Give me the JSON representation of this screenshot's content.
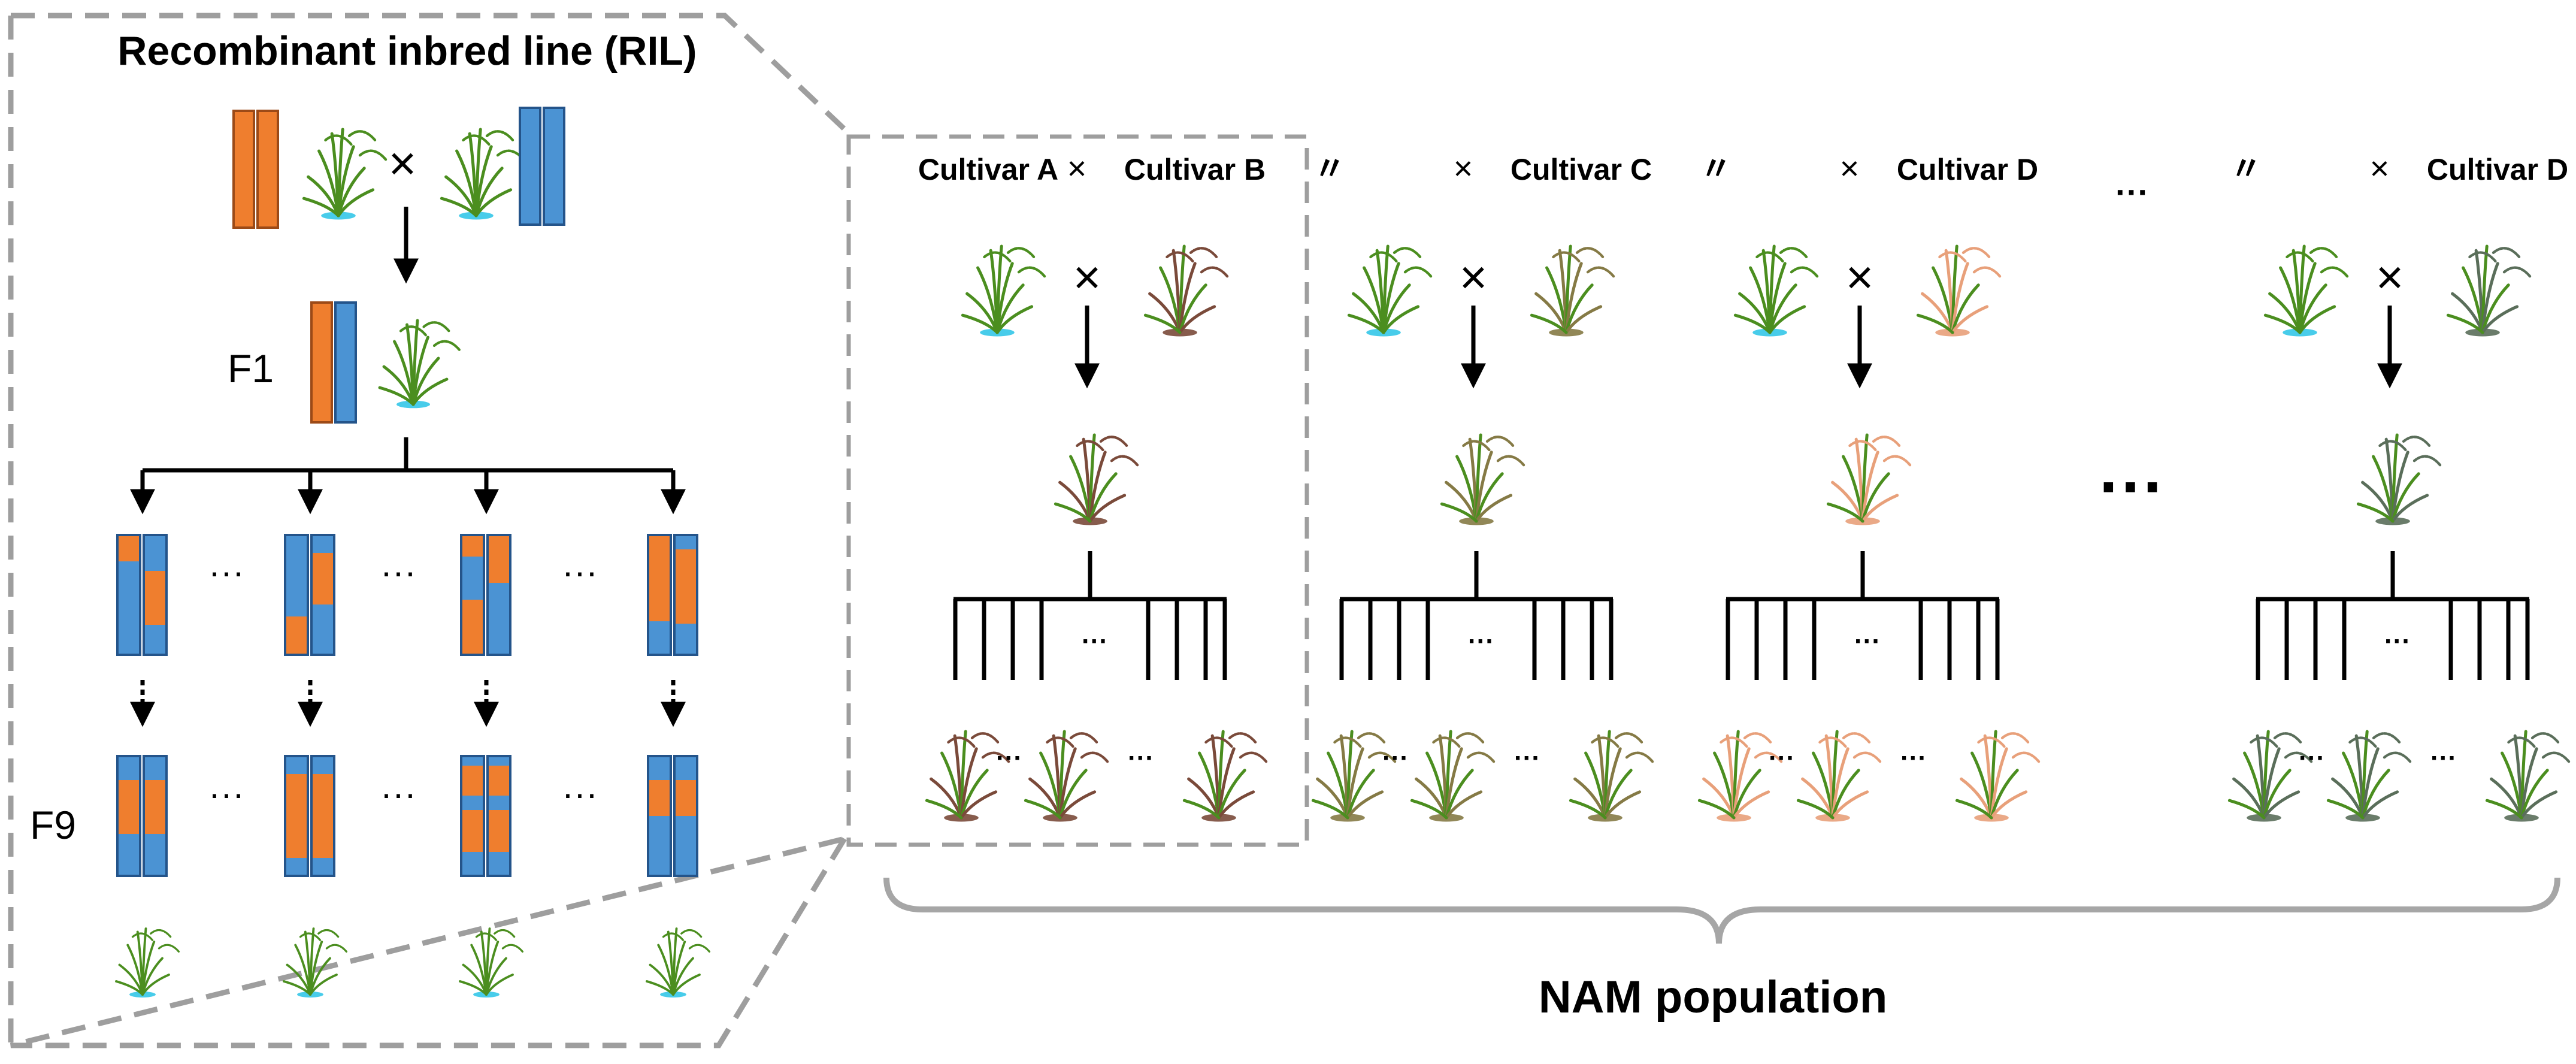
{
  "ril": {
    "title": "Recombinant inbred line (RIL)",
    "cross_symbol": "×",
    "f1_label": "F1",
    "f9_label": "F9",
    "ellipsis": "···",
    "f1_chromosomes": [
      "orange",
      "blue"
    ],
    "columns": [
      {
        "f2_left": [
          {
            "color": "orange",
            "frac": 0.22
          },
          {
            "color": "blue",
            "frac": 0.78
          }
        ],
        "f2_right": [
          {
            "color": "blue",
            "frac": 0.3
          },
          {
            "color": "orange",
            "frac": 0.45
          },
          {
            "color": "blue",
            "frac": 0.25
          }
        ],
        "f9_left": [
          {
            "color": "blue",
            "frac": 0.2
          },
          {
            "color": "orange",
            "frac": 0.45
          },
          {
            "color": "blue",
            "frac": 0.35
          }
        ],
        "f9_right": [
          {
            "color": "blue",
            "frac": 0.2
          },
          {
            "color": "orange",
            "frac": 0.45
          },
          {
            "color": "blue",
            "frac": 0.35
          }
        ]
      },
      {
        "f2_left": [
          {
            "color": "blue",
            "frac": 0.68
          },
          {
            "color": "orange",
            "frac": 0.32
          }
        ],
        "f2_right": [
          {
            "color": "blue",
            "frac": 0.15
          },
          {
            "color": "orange",
            "frac": 0.43
          },
          {
            "color": "blue",
            "frac": 0.42
          }
        ],
        "f9_left": [
          {
            "color": "blue",
            "frac": 0.15
          },
          {
            "color": "orange",
            "frac": 0.7
          },
          {
            "color": "blue",
            "frac": 0.15
          }
        ],
        "f9_right": [
          {
            "color": "blue",
            "frac": 0.15
          },
          {
            "color": "orange",
            "frac": 0.7
          },
          {
            "color": "blue",
            "frac": 0.15
          }
        ]
      },
      {
        "f2_left": [
          {
            "color": "orange",
            "frac": 0.18
          },
          {
            "color": "blue",
            "frac": 0.36
          },
          {
            "color": "orange",
            "frac": 0.46
          }
        ],
        "f2_right": [
          {
            "color": "orange",
            "frac": 0.4
          },
          {
            "color": "blue",
            "frac": 0.6
          }
        ],
        "f9_left": [
          {
            "color": "blue",
            "frac": 0.08
          },
          {
            "color": "orange",
            "frac": 0.25
          },
          {
            "color": "blue",
            "frac": 0.12
          },
          {
            "color": "orange",
            "frac": 0.35
          },
          {
            "color": "blue",
            "frac": 0.2
          }
        ],
        "f9_right": [
          {
            "color": "blue",
            "frac": 0.08
          },
          {
            "color": "orange",
            "frac": 0.25
          },
          {
            "color": "blue",
            "frac": 0.12
          },
          {
            "color": "orange",
            "frac": 0.35
          },
          {
            "color": "blue",
            "frac": 0.2
          }
        ]
      },
      {
        "f2_left": [
          {
            "color": "orange",
            "frac": 0.72
          },
          {
            "color": "blue",
            "frac": 0.28
          }
        ],
        "f2_right": [
          {
            "color": "blue",
            "frac": 0.12
          },
          {
            "color": "orange",
            "frac": 0.62
          },
          {
            "color": "blue",
            "frac": 0.26
          }
        ],
        "f9_left": [
          {
            "color": "blue",
            "frac": 0.2
          },
          {
            "color": "orange",
            "frac": 0.3
          },
          {
            "color": "blue",
            "frac": 0.5
          }
        ],
        "f9_right": [
          {
            "color": "blue",
            "frac": 0.2
          },
          {
            "color": "orange",
            "frac": 0.3
          },
          {
            "color": "blue",
            "frac": 0.5
          }
        ]
      }
    ]
  },
  "nam": {
    "title": "NAM population",
    "cross_symbol": "×",
    "ditto": "〃",
    "ellipsis": "···",
    "families": [
      {
        "parent_a": "Cultivar A",
        "parent_b": "Cultivar B",
        "use_ditto": false,
        "color": "#7a4a3a"
      },
      {
        "parent_a": "",
        "parent_b": "Cultivar C",
        "use_ditto": true,
        "color": "#857a45"
      },
      {
        "parent_a": "",
        "parent_b": "Cultivar D",
        "use_ditto": true,
        "color": "#e8a07a"
      },
      {
        "parent_a": "",
        "parent_b": "Cultivar D",
        "use_ditto": true,
        "color": "#5a6e5a"
      }
    ]
  },
  "colors": {
    "orange": "#ef7e2e",
    "orange_edge": "#9c4a17",
    "blue": "#4b93d3",
    "blue_edge": "#24548a",
    "plant_green": "#4b8e1f",
    "water": "#34c6e8",
    "dashed": "#9e9e9e",
    "bracket": "#a6a6a6"
  }
}
